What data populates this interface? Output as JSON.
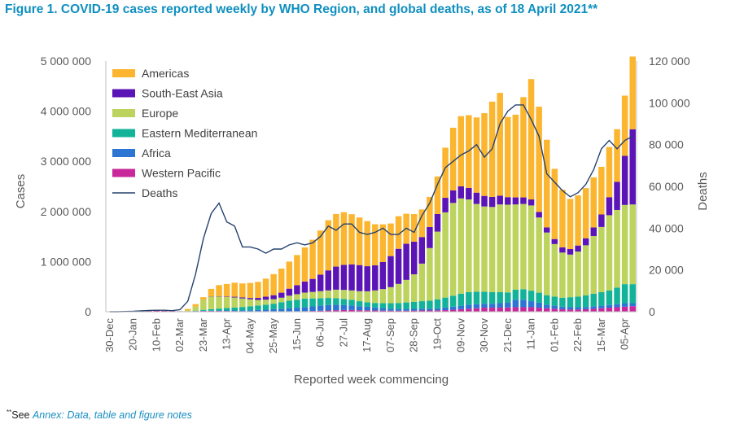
{
  "figure": {
    "title": "Figure 1. COVID-19 cases reported weekly by WHO Region, and global deaths, as of 18 April 2021**",
    "footnote_mark": "**",
    "footnote_prefix": "See ",
    "footnote_link": "Annex: Data, table and figure notes"
  },
  "colors": {
    "title": "#0f8fbf",
    "Americas": "#fbb52f",
    "South-East Asia": "#5b14b5",
    "Europe": "#bcd35d",
    "Eastern Mediterranean": "#13b39a",
    "Africa": "#2c75d3",
    "Western Pacific": "#c9289a",
    "Deaths": "#26426e"
  },
  "chart_data": {
    "type": "bar",
    "stacked": true,
    "xlabel": "Reported week commencing",
    "ylabel": "Cases",
    "y2label": "Deaths",
    "ylim": [
      0,
      5000000
    ],
    "y2lim": [
      0,
      120000
    ],
    "yticks": [
      "0",
      "1 000 000",
      "2 000 000",
      "3 000 000",
      "4 000 000",
      "5 000 000"
    ],
    "y2ticks": [
      "0",
      "20 000",
      "40 000",
      "60 000",
      "80 000",
      "100 000",
      "120 000"
    ],
    "legend_position": "top-left",
    "x_tick_labels": [
      "30-Dec",
      "20-Jan",
      "10-Feb",
      "02-Mar",
      "23-Mar",
      "13-Apr",
      "04-May",
      "25-May",
      "15-Jun",
      "06-Jul",
      "27-Jul",
      "17-Aug",
      "07-Sep",
      "28-Sep",
      "19-Oct",
      "09-Nov",
      "30-Nov",
      "21-Dec",
      "11-Jan",
      "01-Feb",
      "22-Feb",
      "15-Mar",
      "05-Apr"
    ],
    "x_tick_every": 3,
    "categories": [
      "30-Dec",
      "06-Jan",
      "13-Jan",
      "20-Jan",
      "27-Jan",
      "03-Feb",
      "10-Feb",
      "17-Feb",
      "24-Feb",
      "02-Mar",
      "09-Mar",
      "16-Mar",
      "23-Mar",
      "30-Mar",
      "06-Apr",
      "13-Apr",
      "20-Apr",
      "27-Apr",
      "04-May",
      "11-May",
      "18-May",
      "25-May",
      "01-Jun",
      "08-Jun",
      "15-Jun",
      "22-Jun",
      "29-Jun",
      "06-Jul",
      "13-Jul",
      "20-Jul",
      "27-Jul",
      "03-Aug",
      "10-Aug",
      "17-Aug",
      "24-Aug",
      "31-Aug",
      "07-Sep",
      "14-Sep",
      "21-Sep",
      "28-Sep",
      "05-Oct",
      "12-Oct",
      "19-Oct",
      "26-Oct",
      "02-Nov",
      "09-Nov",
      "16-Nov",
      "23-Nov",
      "30-Nov",
      "07-Dec",
      "14-Dec",
      "21-Dec",
      "28-Dec",
      "04-Jan",
      "11-Jan",
      "18-Jan",
      "25-Jan",
      "01-Feb",
      "08-Feb",
      "15-Feb",
      "22-Feb",
      "01-Mar",
      "08-Mar",
      "15-Mar",
      "22-Mar",
      "29-Mar",
      "05-Apr",
      "12-Apr"
    ],
    "series": [
      {
        "name": "Western Pacific",
        "values": [
          0,
          0,
          500,
          2000,
          8000,
          20000,
          30000,
          20000,
          15000,
          10000,
          8000,
          12000,
          15000,
          15000,
          15000,
          14000,
          12000,
          10000,
          9000,
          10000,
          10000,
          10000,
          10000,
          10000,
          10000,
          12000,
          15000,
          20000,
          25000,
          30000,
          35000,
          35000,
          30000,
          28000,
          25000,
          22000,
          20000,
          20000,
          20000,
          22000,
          25000,
          25000,
          28000,
          32000,
          40000,
          50000,
          60000,
          70000,
          80000,
          80000,
          80000,
          85000,
          90000,
          90000,
          90000,
          80000,
          70000,
          60000,
          50000,
          45000,
          45000,
          50000,
          60000,
          70000,
          80000,
          90000,
          100000,
          110000
        ]
      },
      {
        "name": "Africa",
        "values": [
          0,
          0,
          0,
          0,
          0,
          0,
          0,
          0,
          0,
          0,
          200,
          1000,
          3000,
          6000,
          8000,
          10000,
          12000,
          15000,
          20000,
          25000,
          30000,
          40000,
          50000,
          60000,
          70000,
          80000,
          90000,
          100000,
          110000,
          110000,
          100000,
          90000,
          80000,
          70000,
          60000,
          50000,
          40000,
          35000,
          35000,
          35000,
          35000,
          35000,
          40000,
          50000,
          60000,
          70000,
          80000,
          80000,
          80000,
          80000,
          90000,
          100000,
          150000,
          150000,
          120000,
          100000,
          70000,
          60000,
          50000,
          45000,
          45000,
          45000,
          50000,
          50000,
          55000,
          60000,
          70000,
          60000
        ]
      },
      {
        "name": "Eastern Mediterranean",
        "values": [
          0,
          0,
          0,
          0,
          0,
          0,
          0,
          0,
          0,
          300,
          2000,
          8000,
          20000,
          30000,
          40000,
          50000,
          60000,
          70000,
          80000,
          90000,
          100000,
          110000,
          130000,
          150000,
          160000,
          170000,
          160000,
          150000,
          140000,
          130000,
          120000,
          110000,
          100000,
          90000,
          90000,
          100000,
          110000,
          120000,
          130000,
          140000,
          150000,
          160000,
          180000,
          200000,
          220000,
          240000,
          250000,
          250000,
          240000,
          230000,
          220000,
          200000,
          200000,
          210000,
          210000,
          200000,
          190000,
          180000,
          180000,
          200000,
          210000,
          230000,
          250000,
          270000,
          290000,
          330000,
          380000,
          380000
        ]
      },
      {
        "name": "Europe",
        "values": [
          0,
          0,
          0,
          0,
          0,
          0,
          0,
          0,
          0,
          1000,
          15000,
          80000,
          200000,
          250000,
          240000,
          220000,
          200000,
          170000,
          140000,
          110000,
          100000,
          90000,
          90000,
          100000,
          110000,
          120000,
          130000,
          140000,
          150000,
          170000,
          180000,
          190000,
          200000,
          220000,
          250000,
          280000,
          320000,
          380000,
          450000,
          550000,
          750000,
          1050000,
          1350000,
          1700000,
          1850000,
          1900000,
          1850000,
          1750000,
          1700000,
          1700000,
          1750000,
          1750000,
          1700000,
          1700000,
          1700000,
          1500000,
          1250000,
          1050000,
          900000,
          850000,
          900000,
          1000000,
          1150000,
          1300000,
          1500000,
          1550000,
          1580000,
          1590000
        ]
      },
      {
        "name": "South-East Asia",
        "values": [
          0,
          0,
          0,
          0,
          0,
          0,
          0,
          0,
          0,
          0,
          0,
          0,
          2000,
          5000,
          8000,
          10000,
          15000,
          20000,
          25000,
          40000,
          60000,
          80000,
          100000,
          140000,
          180000,
          220000,
          260000,
          330000,
          400000,
          460000,
          500000,
          520000,
          520000,
          500000,
          500000,
          540000,
          620000,
          700000,
          720000,
          650000,
          530000,
          420000,
          350000,
          290000,
          250000,
          240000,
          230000,
          225000,
          210000,
          200000,
          175000,
          150000,
          140000,
          130000,
          120000,
          110000,
          100000,
          100000,
          105000,
          110000,
          120000,
          140000,
          170000,
          250000,
          360000,
          560000,
          980000,
          1500000
        ]
      },
      {
        "name": "Americas",
        "values": [
          0,
          0,
          0,
          0,
          0,
          0,
          0,
          0,
          0,
          0,
          30000,
          50000,
          50000,
          150000,
          220000,
          250000,
          280000,
          280000,
          300000,
          320000,
          360000,
          420000,
          480000,
          540000,
          600000,
          680000,
          780000,
          880000,
          1000000,
          1050000,
          1050000,
          1000000,
          950000,
          900000,
          820000,
          750000,
          650000,
          650000,
          600000,
          550000,
          550000,
          600000,
          750000,
          1000000,
          1250000,
          1400000,
          1450000,
          1500000,
          1650000,
          1900000,
          2050000,
          1600000,
          1650000,
          2000000,
          2400000,
          2100000,
          1750000,
          1400000,
          1150000,
          1000000,
          1000000,
          1000000,
          1000000,
          950000,
          1000000,
          1050000,
          1200000,
          1450000
        ]
      },
      {
        "name": "Deaths",
        "type": "line",
        "axis": "right",
        "values": [
          0,
          0,
          100,
          200,
          400,
          600,
          700,
          700,
          500,
          1000,
          5000,
          18000,
          35000,
          47000,
          52000,
          43000,
          41000,
          31000,
          31000,
          30000,
          28000,
          30000,
          30000,
          32000,
          33000,
          32000,
          33000,
          36000,
          41000,
          39000,
          42000,
          42000,
          38000,
          37000,
          38000,
          40000,
          37000,
          37000,
          40000,
          38000,
          46000,
          52000,
          61000,
          69000,
          72000,
          75000,
          77000,
          80000,
          74000,
          78000,
          90000,
          96000,
          99000,
          99000,
          92000,
          84000,
          66000,
          62000,
          58000,
          55000,
          57000,
          61000,
          68000,
          78000,
          82000,
          78000,
          82000,
          84000
        ]
      }
    ]
  }
}
